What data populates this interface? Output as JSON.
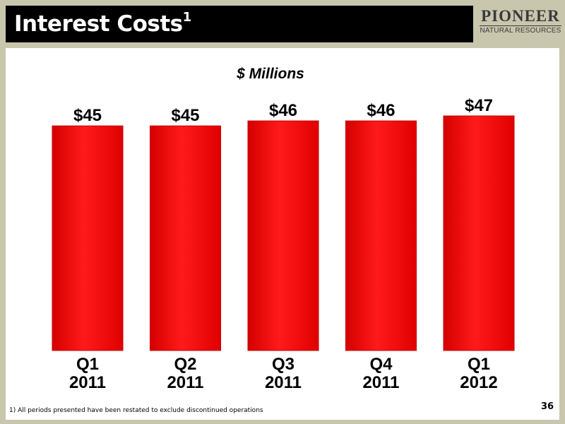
{
  "slide": {
    "title": "Interest Costs",
    "title_sup": "1",
    "logo_main": "PIONEER",
    "logo_sub": "NATURAL RESOURCES",
    "footnote": "1) All periods presented have been restated to exclude discontinued operations",
    "page_number": "36"
  },
  "chart_data": {
    "type": "bar",
    "subtitle": "$ Millions",
    "categories": [
      [
        "Q1",
        "2011"
      ],
      [
        "Q2",
        "2011"
      ],
      [
        "Q3",
        "2011"
      ],
      [
        "Q4",
        "2011"
      ],
      [
        "Q1",
        "2012"
      ]
    ],
    "values": [
      45,
      45,
      46,
      46,
      47
    ],
    "data_labels": [
      "$45",
      "$45",
      "$46",
      "$46",
      "$47"
    ],
    "ylim": [
      0,
      47
    ],
    "bar_color": "#ff0000",
    "bar_edge_color": "#c80000",
    "grid": false,
    "legend": "none"
  }
}
